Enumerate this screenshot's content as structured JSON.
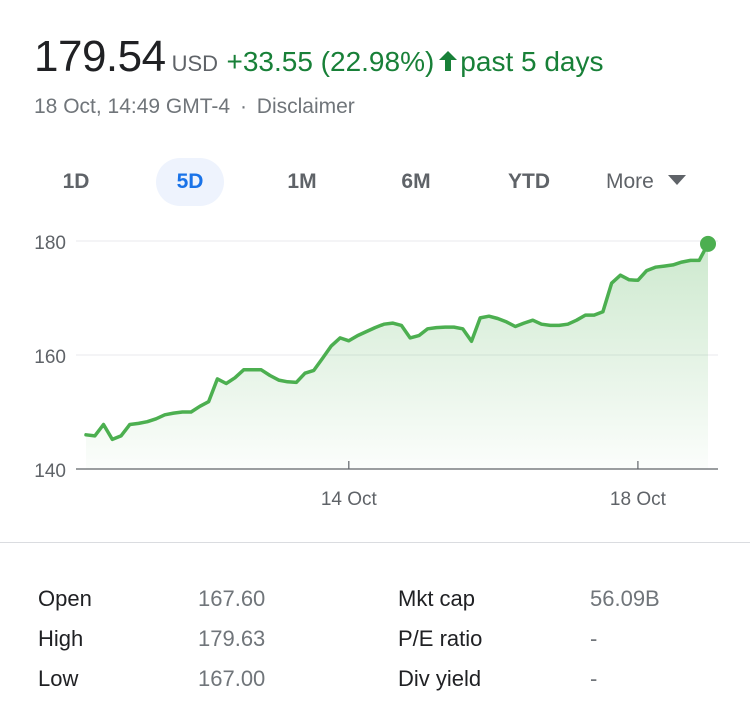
{
  "quote": {
    "price": "179.54",
    "currency": "USD",
    "change": "+33.55 (22.98%)",
    "period": "past 5 days",
    "timestamp": "18 Oct, 14:49 GMT-4",
    "separator": "·",
    "disclaimer": "Disclaimer"
  },
  "tabs": [
    {
      "label": "1D",
      "active": false
    },
    {
      "label": "5D",
      "active": true
    },
    {
      "label": "1M",
      "active": false
    },
    {
      "label": "6M",
      "active": false
    },
    {
      "label": "YTD",
      "active": false
    }
  ],
  "more_label": "More",
  "colors": {
    "positive": "#188038",
    "line": "#4caf50",
    "accent": "#1a73e8",
    "active_tab_bg": "#eef3fd"
  },
  "chart_data": {
    "type": "area",
    "ylim": [
      140,
      182
    ],
    "yticks": [
      140,
      160,
      180
    ],
    "xticks": [
      {
        "label": "14 Oct",
        "index": 30
      },
      {
        "label": "18 Oct",
        "index": 63
      }
    ],
    "grid": true,
    "series": [
      {
        "values": [
          146,
          145.8,
          147.8,
          145.2,
          145.8,
          147.8,
          148,
          148.3,
          148.8,
          149.5,
          149.8,
          150,
          150,
          151,
          151.8,
          155.8,
          155,
          156,
          157.4,
          157.4,
          157.4,
          156.4,
          155.6,
          155.3,
          155.2,
          156.8,
          157.3,
          159.4,
          161.6,
          163,
          162.5,
          163.4,
          164.1,
          164.8,
          165.4,
          165.6,
          165.2,
          163,
          163.4,
          164.6,
          164.8,
          164.9,
          164.9,
          164.6,
          162.4,
          166.5,
          166.8,
          166.4,
          165.8,
          165,
          165.6,
          166.1,
          165.4,
          165.2,
          165.2,
          165.4,
          166.1,
          167,
          167,
          167.6,
          172.6,
          174,
          173.2,
          173.1,
          174.8,
          175.4,
          175.6,
          175.8,
          176.3,
          176.6,
          176.6,
          179.5
        ]
      }
    ]
  },
  "stats": [
    {
      "label": "Open",
      "value": "167.60"
    },
    {
      "label": "High",
      "value": "179.63"
    },
    {
      "label": "Low",
      "value": "167.00"
    },
    {
      "label": "Mkt cap",
      "value": "56.09B"
    },
    {
      "label": "P/E ratio",
      "value": "-"
    },
    {
      "label": "Div yield",
      "value": "-"
    }
  ]
}
